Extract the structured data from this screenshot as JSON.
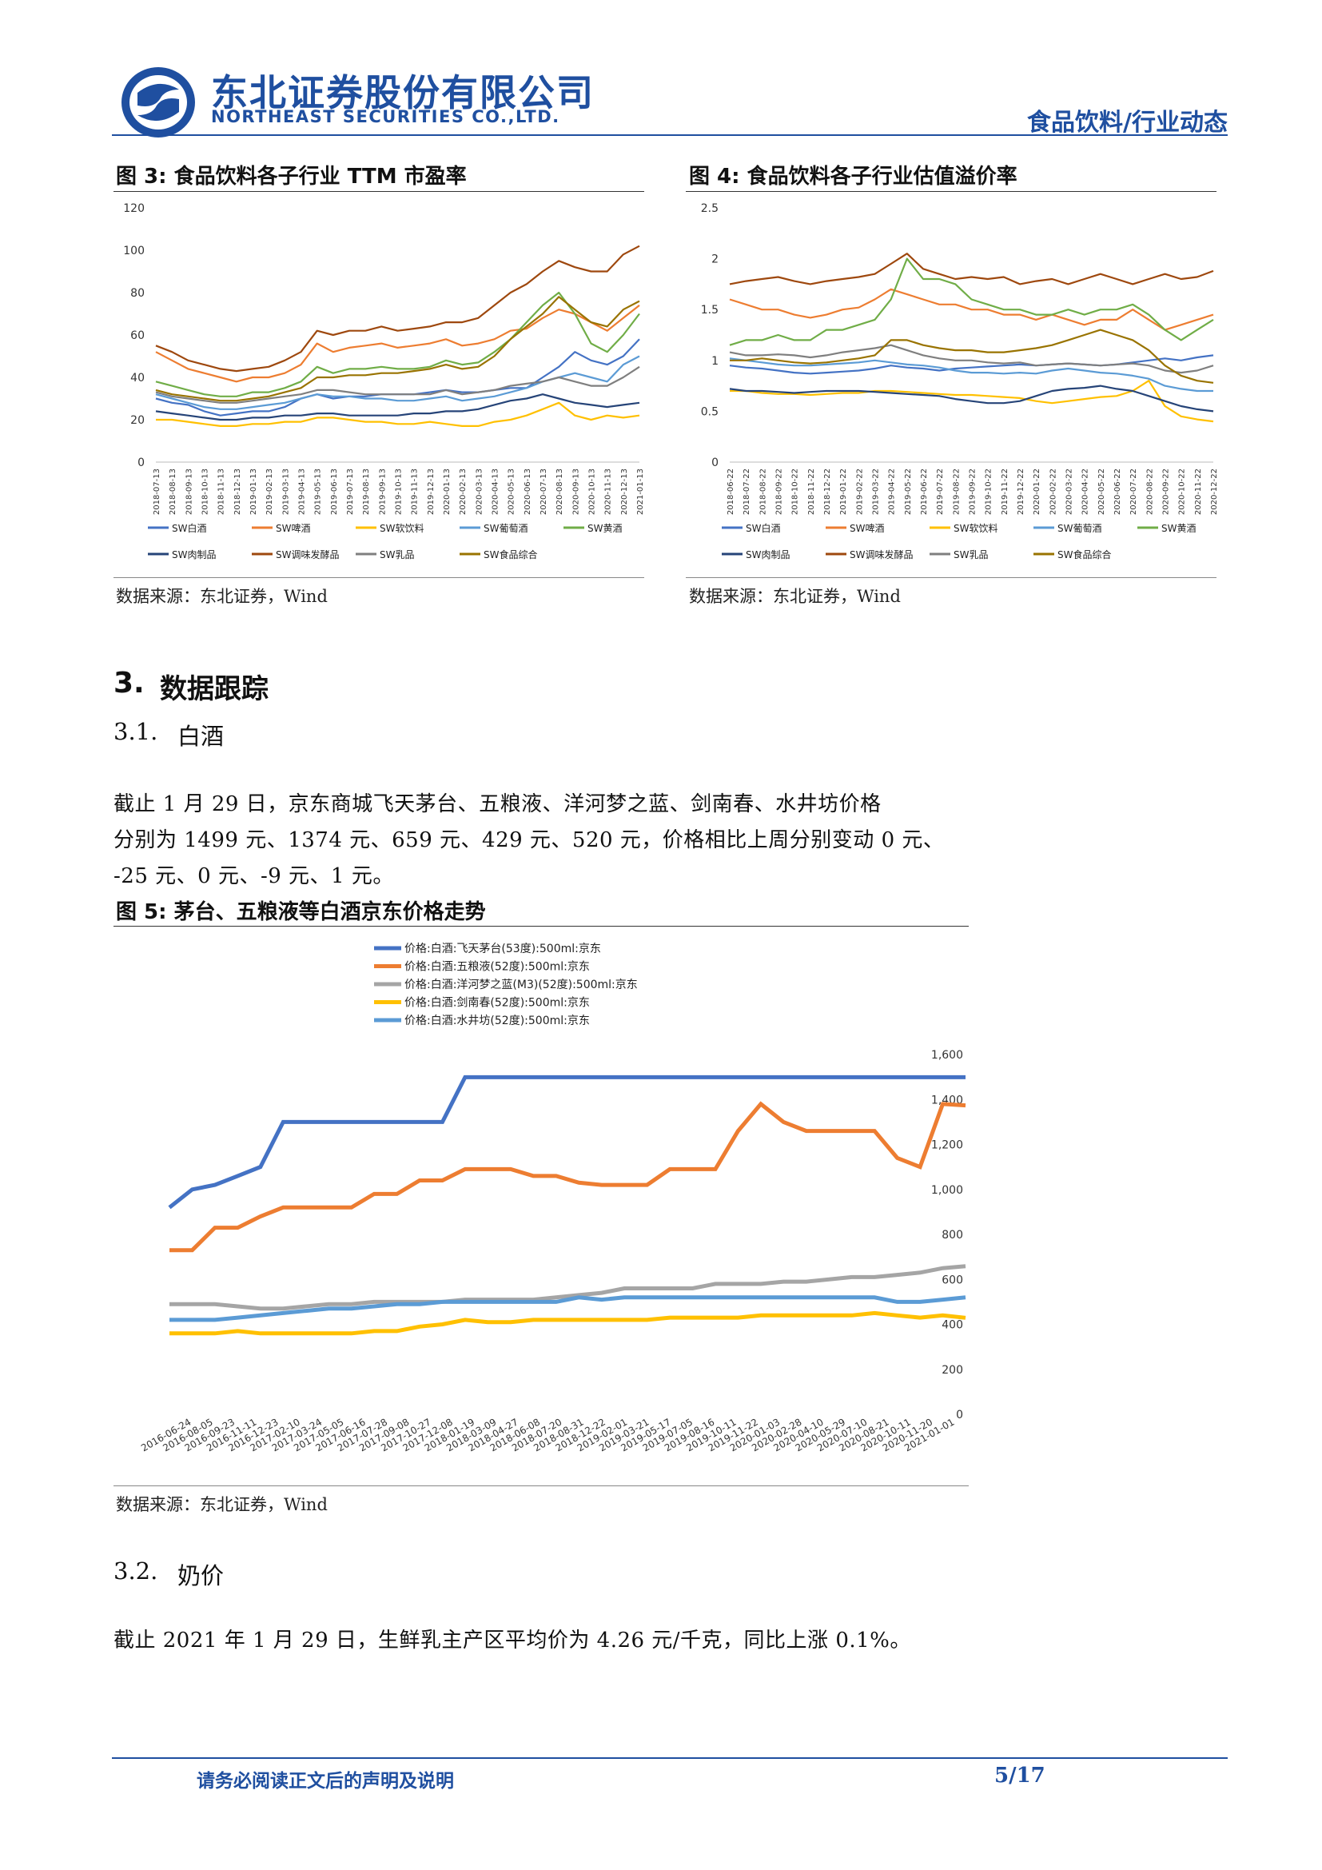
{
  "header": {
    "company_cn": "东北证券股份有限公司",
    "company_en": "NORTHEAST SECURITIES CO.,LTD.",
    "category": "食品饮料/行业动态",
    "brand_color": "#1f4fa0"
  },
  "figures": {
    "fig3": {
      "title": "图 3: 食品饮料各子行业 TTM 市盈率",
      "source": "数据来源：东北证券，Wind"
    },
    "fig4": {
      "title": "图 4: 食品饮料各子行业估值溢价率",
      "source": "数据来源：东北证券，Wind"
    },
    "fig5": {
      "title": "图 5: 茅台、五粮液等白酒京东价格走势",
      "source": "数据来源：东北证券，Wind"
    }
  },
  "section3": {
    "heading_num": "3.",
    "heading": "数据跟踪",
    "s31_num": "3.1.",
    "s31_title": "白酒",
    "s31_line1": "截止 1 月 29 日，京东商城飞天茅台、五粮液、洋河梦之蓝、剑南春、水井坊价格",
    "s31_line2": "分别为 1499 元、1374 元、659 元、429 元、520 元，价格相比上周分别变动 0 元、",
    "s31_line3": "-25 元、0 元、-9 元、1 元。",
    "s32_num": "3.2.",
    "s32_title": "奶价",
    "s32_text": "截止 2021 年 1 月 29 日，生鲜乳主产区平均价为 4.26 元/千克，同比上涨 0.1%。"
  },
  "footer": {
    "disclaimer": "请务必阅读正文后的声明及说明",
    "page": "5/17"
  },
  "chart_data": [
    {
      "id": "fig3",
      "type": "line",
      "title": "图 3: 食品饮料各子行业 TTM 市盈率",
      "ylim": [
        0,
        120
      ],
      "yticks": [
        "0",
        "20",
        "40",
        "60",
        "80",
        "100",
        "120"
      ],
      "x_labels": [
        "2018-07-13",
        "2018-08-13",
        "2018-09-13",
        "2018-10-13",
        "2018-11-13",
        "2018-12-13",
        "2019-01-13",
        "2019-02-13",
        "2019-03-13",
        "2019-04-13",
        "2019-05-13",
        "2019-06-13",
        "2019-07-13",
        "2019-08-13",
        "2019-09-13",
        "2019-10-13",
        "2019-11-13",
        "2019-12-13",
        "2020-01-13",
        "2020-02-13",
        "2020-03-13",
        "2020-04-13",
        "2020-05-13",
        "2020-06-13",
        "2020-07-13",
        "2020-08-13",
        "2020-09-13",
        "2020-10-13",
        "2020-11-13",
        "2020-12-13",
        "2021-01-13"
      ],
      "grid": false,
      "legend_position": "bottom",
      "series": [
        {
          "name": "SW白酒",
          "color": "#4472c4",
          "values": [
            30,
            28,
            27,
            24,
            22,
            23,
            24,
            24,
            26,
            30,
            32,
            30,
            31,
            31,
            32,
            32,
            32,
            33,
            34,
            33,
            33,
            34,
            35,
            35,
            40,
            45,
            52,
            48,
            46,
            50,
            58
          ]
        },
        {
          "name": "SW啤酒",
          "color": "#ed7d31",
          "values": [
            52,
            48,
            44,
            42,
            40,
            38,
            40,
            40,
            42,
            46,
            56,
            52,
            54,
            55,
            56,
            54,
            55,
            56,
            58,
            55,
            56,
            58,
            62,
            63,
            68,
            72,
            70,
            66,
            62,
            68,
            74
          ]
        },
        {
          "name": "SW软饮料",
          "color": "#ffc000",
          "values": [
            20,
            20,
            19,
            18,
            17,
            17,
            18,
            18,
            19,
            19,
            21,
            21,
            20,
            19,
            19,
            18,
            18,
            19,
            18,
            17,
            17,
            19,
            20,
            22,
            25,
            28,
            22,
            20,
            22,
            21,
            22
          ]
        },
        {
          "name": "SW葡萄酒",
          "color": "#5b9bd5",
          "values": [
            32,
            30,
            28,
            26,
            25,
            25,
            26,
            27,
            28,
            30,
            32,
            31,
            31,
            30,
            30,
            29,
            29,
            30,
            31,
            29,
            30,
            31,
            33,
            35,
            38,
            40,
            42,
            40,
            38,
            46,
            50
          ]
        },
        {
          "name": "SW黄酒",
          "color": "#70ad47",
          "values": [
            38,
            36,
            34,
            32,
            31,
            31,
            33,
            33,
            35,
            38,
            45,
            42,
            44,
            44,
            45,
            44,
            44,
            45,
            48,
            46,
            47,
            52,
            58,
            66,
            74,
            80,
            70,
            56,
            52,
            60,
            70
          ]
        },
        {
          "name": "SW肉制品",
          "color": "#264478",
          "values": [
            24,
            23,
            22,
            21,
            20,
            20,
            21,
            21,
            22,
            22,
            23,
            23,
            22,
            22,
            22,
            22,
            23,
            23,
            24,
            24,
            25,
            27,
            29,
            30,
            32,
            30,
            28,
            27,
            26,
            27,
            28
          ]
        },
        {
          "name": "SW调味发酵品",
          "color": "#9e480e",
          "values": [
            55,
            52,
            48,
            46,
            44,
            43,
            44,
            45,
            48,
            52,
            62,
            60,
            62,
            62,
            64,
            62,
            63,
            64,
            66,
            66,
            68,
            74,
            80,
            84,
            90,
            95,
            92,
            90,
            90,
            98,
            102
          ]
        },
        {
          "name": "SW乳品",
          "color": "#7f7f7f",
          "values": [
            33,
            31,
            30,
            29,
            28,
            28,
            29,
            30,
            31,
            32,
            34,
            34,
            33,
            32,
            32,
            32,
            32,
            32,
            34,
            32,
            33,
            34,
            36,
            37,
            38,
            40,
            38,
            36,
            36,
            40,
            45
          ]
        },
        {
          "name": "SW食品综合",
          "color": "#997300",
          "values": [
            34,
            32,
            31,
            30,
            29,
            29,
            30,
            31,
            33,
            35,
            40,
            40,
            41,
            41,
            42,
            42,
            43,
            44,
            46,
            44,
            45,
            50,
            58,
            64,
            70,
            78,
            72,
            66,
            64,
            72,
            76
          ]
        }
      ]
    },
    {
      "id": "fig4",
      "type": "line",
      "title": "图 4: 食品饮料各子行业估值溢价率",
      "ylim": [
        0,
        2.5
      ],
      "yticks": [
        "0",
        "0.5",
        "1",
        "1.5",
        "2",
        "2.5"
      ],
      "x_labels": [
        "2018-06-22",
        "2018-07-22",
        "2018-08-22",
        "2018-09-22",
        "2018-10-22",
        "2018-11-22",
        "2018-12-22",
        "2019-01-22",
        "2019-02-22",
        "2019-03-22",
        "2019-04-22",
        "2019-05-22",
        "2019-06-22",
        "2019-07-22",
        "2019-08-22",
        "2019-09-22",
        "2019-10-22",
        "2019-11-22",
        "2019-12-22",
        "2020-01-22",
        "2020-02-22",
        "2020-03-22",
        "2020-04-22",
        "2020-05-22",
        "2020-06-22",
        "2020-07-22",
        "2020-08-22",
        "2020-09-22",
        "2020-10-22",
        "2020-11-22",
        "2020-12-22"
      ],
      "grid": false,
      "legend_position": "bottom",
      "series": [
        {
          "name": "SW白酒",
          "color": "#4472c4",
          "values": [
            0.95,
            0.93,
            0.92,
            0.9,
            0.88,
            0.87,
            0.88,
            0.89,
            0.9,
            0.92,
            0.95,
            0.93,
            0.92,
            0.9,
            0.92,
            0.93,
            0.94,
            0.95,
            0.96,
            0.95,
            0.96,
            0.97,
            0.96,
            0.95,
            0.96,
            0.98,
            1.0,
            1.02,
            1.0,
            1.03,
            1.05
          ]
        },
        {
          "name": "SW啤酒",
          "color": "#ed7d31",
          "values": [
            1.6,
            1.55,
            1.5,
            1.5,
            1.45,
            1.42,
            1.45,
            1.5,
            1.52,
            1.6,
            1.7,
            1.65,
            1.6,
            1.55,
            1.55,
            1.5,
            1.5,
            1.45,
            1.45,
            1.4,
            1.45,
            1.4,
            1.35,
            1.4,
            1.4,
            1.5,
            1.4,
            1.3,
            1.35,
            1.4,
            1.45
          ]
        },
        {
          "name": "SW软饮料",
          "color": "#ffc000",
          "values": [
            0.7,
            0.7,
            0.68,
            0.67,
            0.67,
            0.66,
            0.67,
            0.68,
            0.68,
            0.7,
            0.7,
            0.69,
            0.68,
            0.67,
            0.66,
            0.66,
            0.65,
            0.64,
            0.63,
            0.6,
            0.58,
            0.6,
            0.62,
            0.64,
            0.65,
            0.7,
            0.8,
            0.55,
            0.45,
            0.42,
            0.4
          ]
        },
        {
          "name": "SW葡萄酒",
          "color": "#5b9bd5",
          "values": [
            1.02,
            1.0,
            0.98,
            0.96,
            0.95,
            0.95,
            0.96,
            0.97,
            0.98,
            1.0,
            0.98,
            0.96,
            0.95,
            0.93,
            0.9,
            0.88,
            0.88,
            0.87,
            0.88,
            0.87,
            0.9,
            0.92,
            0.9,
            0.88,
            0.87,
            0.85,
            0.82,
            0.75,
            0.72,
            0.7,
            0.7
          ]
        },
        {
          "name": "SW黄酒",
          "color": "#70ad47",
          "values": [
            1.15,
            1.2,
            1.2,
            1.25,
            1.2,
            1.2,
            1.3,
            1.3,
            1.35,
            1.4,
            1.6,
            2.0,
            1.8,
            1.8,
            1.75,
            1.6,
            1.55,
            1.5,
            1.5,
            1.45,
            1.45,
            1.5,
            1.45,
            1.5,
            1.5,
            1.55,
            1.45,
            1.3,
            1.2,
            1.3,
            1.4
          ]
        },
        {
          "name": "SW肉制品",
          "color": "#264478",
          "values": [
            0.72,
            0.7,
            0.7,
            0.69,
            0.68,
            0.69,
            0.7,
            0.7,
            0.7,
            0.69,
            0.68,
            0.67,
            0.66,
            0.65,
            0.62,
            0.6,
            0.58,
            0.58,
            0.6,
            0.65,
            0.7,
            0.72,
            0.73,
            0.75,
            0.72,
            0.7,
            0.65,
            0.6,
            0.55,
            0.52,
            0.5
          ]
        },
        {
          "name": "SW调味发酵品",
          "color": "#9e480e",
          "values": [
            1.75,
            1.78,
            1.8,
            1.82,
            1.78,
            1.75,
            1.78,
            1.8,
            1.82,
            1.85,
            1.95,
            2.05,
            1.9,
            1.85,
            1.8,
            1.82,
            1.8,
            1.82,
            1.75,
            1.78,
            1.8,
            1.75,
            1.8,
            1.85,
            1.8,
            1.75,
            1.8,
            1.85,
            1.8,
            1.82,
            1.88
          ]
        },
        {
          "name": "SW乳品",
          "color": "#7f7f7f",
          "values": [
            1.08,
            1.05,
            1.05,
            1.06,
            1.05,
            1.03,
            1.05,
            1.08,
            1.1,
            1.12,
            1.15,
            1.1,
            1.05,
            1.02,
            1.0,
            1.0,
            0.98,
            0.97,
            0.98,
            0.95,
            0.96,
            0.97,
            0.96,
            0.95,
            0.96,
            0.97,
            0.95,
            0.9,
            0.88,
            0.9,
            0.95
          ]
        },
        {
          "name": "SW食品综合",
          "color": "#997300",
          "values": [
            1.0,
            1.0,
            1.02,
            1.0,
            0.98,
            0.97,
            0.98,
            1.0,
            1.02,
            1.05,
            1.2,
            1.2,
            1.15,
            1.12,
            1.1,
            1.1,
            1.08,
            1.08,
            1.1,
            1.12,
            1.15,
            1.2,
            1.25,
            1.3,
            1.25,
            1.2,
            1.1,
            0.95,
            0.85,
            0.8,
            0.78
          ]
        }
      ]
    },
    {
      "id": "fig5",
      "type": "line",
      "title": "图 5: 茅台、五粮液等白酒京东价格走势",
      "ylim": [
        0,
        1600
      ],
      "yticks": [
        "0",
        "200",
        "400",
        "600",
        "800",
        "1,000",
        "1,200",
        "1,400",
        "1,600"
      ],
      "x_labels": [
        "2016-06-24",
        "2016-08-05",
        "2016-09-23",
        "2016-11-11",
        "2016-12-23",
        "2017-02-10",
        "2017-03-24",
        "2017-05-05",
        "2017-06-16",
        "2017-07-28",
        "2017-09-08",
        "2017-10-27",
        "2017-12-08",
        "2018-01-19",
        "2018-03-09",
        "2018-04-27",
        "2018-06-08",
        "2018-07-20",
        "2018-08-31",
        "2018-12-22",
        "2019-02-01",
        "2019-03-21",
        "2019-05-17",
        "2019-07-05",
        "2019-08-16",
        "2019-10-11",
        "2019-11-22",
        "2020-01-03",
        "2020-02-28",
        "2020-04-10",
        "2020-05-29",
        "2020-07-10",
        "2020-08-21",
        "2020-10-11",
        "2020-11-20",
        "2021-01-01"
      ],
      "grid": false,
      "legend_position": "top",
      "series": [
        {
          "name": "价格:白酒:飞天茅台(53度):500ml:京东",
          "color": "#4472c4",
          "values": [
            920,
            1000,
            1020,
            1060,
            1100,
            1300,
            1300,
            1300,
            1300,
            1300,
            1300,
            1300,
            1300,
            1499,
            1499,
            1499,
            1499,
            1499,
            1499,
            1499,
            1499,
            1499,
            1499,
            1499,
            1499,
            1499,
            1499,
            1499,
            1499,
            1499,
            1499,
            1499,
            1499,
            1499,
            1499,
            1499
          ]
        },
        {
          "name": "价格:白酒:五粮液(52度):500ml:京东",
          "color": "#ed7d31",
          "values": [
            730,
            730,
            830,
            830,
            880,
            920,
            920,
            920,
            920,
            980,
            980,
            1040,
            1040,
            1090,
            1090,
            1090,
            1060,
            1060,
            1030,
            1020,
            1020,
            1020,
            1090,
            1090,
            1090,
            1260,
            1380,
            1300,
            1260,
            1260,
            1260,
            1260,
            1140,
            1100,
            1380,
            1374
          ]
        },
        {
          "name": "价格:白酒:洋河梦之蓝(M3)(52度):500ml:京东",
          "color": "#a5a5a5",
          "values": [
            490,
            490,
            490,
            480,
            470,
            470,
            480,
            490,
            490,
            500,
            500,
            500,
            500,
            510,
            510,
            510,
            510,
            520,
            530,
            540,
            560,
            560,
            560,
            560,
            580,
            580,
            580,
            590,
            590,
            600,
            610,
            610,
            620,
            630,
            650,
            659
          ]
        },
        {
          "name": "价格:白酒:剑南春(52度):500ml:京东",
          "color": "#ffc000",
          "values": [
            360,
            360,
            360,
            370,
            360,
            360,
            360,
            360,
            360,
            370,
            370,
            390,
            400,
            420,
            410,
            410,
            420,
            420,
            420,
            420,
            420,
            420,
            430,
            430,
            430,
            430,
            440,
            440,
            440,
            440,
            440,
            450,
            440,
            430,
            440,
            429
          ]
        },
        {
          "name": "价格:白酒:水井坊(52度):500ml:京东",
          "color": "#5b9bd5",
          "values": [
            420,
            420,
            420,
            430,
            440,
            450,
            460,
            470,
            470,
            480,
            490,
            490,
            500,
            500,
            500,
            500,
            500,
            500,
            520,
            510,
            520,
            520,
            520,
            520,
            520,
            520,
            520,
            520,
            520,
            520,
            520,
            520,
            500,
            500,
            510,
            520
          ]
        }
      ]
    }
  ]
}
